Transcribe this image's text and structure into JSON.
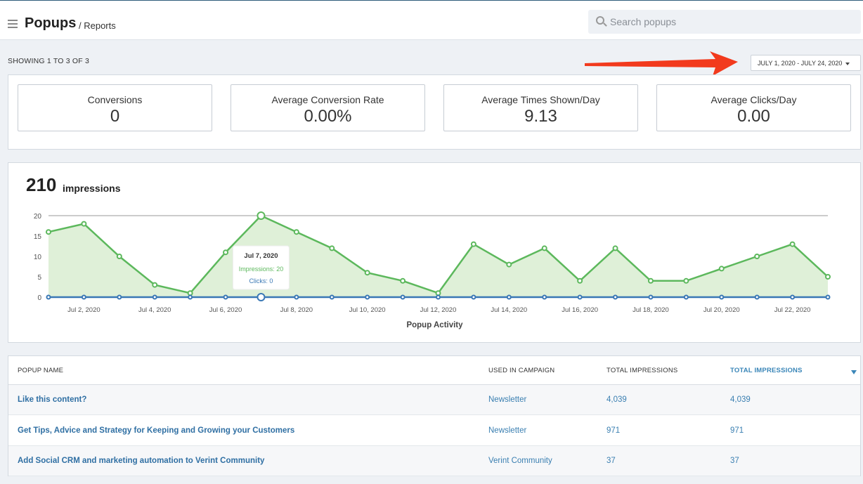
{
  "header": {
    "title": "Popups",
    "breadcrumb": "/ Reports",
    "search_placeholder": "Search popups"
  },
  "toolbar": {
    "showing": "SHOWING 1 TO 3 OF 3",
    "date_range": "JULY 1, 2020 - JULY 24, 2020"
  },
  "stats": [
    {
      "label": "Conversions",
      "value": "0"
    },
    {
      "label": "Average Conversion Rate",
      "value": "0.00%"
    },
    {
      "label": "Average Times Shown/Day",
      "value": "9.13"
    },
    {
      "label": "Average Clicks/Day",
      "value": "0.00"
    }
  ],
  "summary": {
    "count": "210",
    "label": "impressions"
  },
  "chart_data": {
    "type": "area",
    "xlabel": "Popup Activity",
    "ylabel": "",
    "ylim": [
      0,
      20
    ],
    "yticks": [
      0,
      5,
      10,
      15,
      20
    ],
    "x": [
      "Jul 1, 2020",
      "Jul 2, 2020",
      "Jul 3, 2020",
      "Jul 4, 2020",
      "Jul 5, 2020",
      "Jul 6, 2020",
      "Jul 7, 2020",
      "Jul 8, 2020",
      "Jul 9, 2020",
      "Jul 10, 2020",
      "Jul 11, 2020",
      "Jul 12, 2020",
      "Jul 13, 2020",
      "Jul 14, 2020",
      "Jul 15, 2020",
      "Jul 16, 2020",
      "Jul 17, 2020",
      "Jul 18, 2020",
      "Jul 19, 2020",
      "Jul 20, 2020",
      "Jul 21, 2020",
      "Jul 22, 2020",
      "Jul 23, 2020"
    ],
    "xtick_labels": [
      "Jul 2, 2020",
      "Jul 4, 2020",
      "Jul 6, 2020",
      "Jul 8, 2020",
      "Jul 10, 2020",
      "Jul 12, 2020",
      "Jul 14, 2020",
      "Jul 16, 2020",
      "Jul 18, 2020",
      "Jul 20, 2020",
      "Jul 22, 2020"
    ],
    "series": [
      {
        "name": "Impressions",
        "color": "#5cb85c",
        "values": [
          16,
          18,
          10,
          3,
          1,
          11,
          20,
          16,
          12,
          6,
          4,
          1,
          13,
          8,
          12,
          4,
          12,
          4,
          4,
          7,
          10,
          13,
          5
        ]
      },
      {
        "name": "Clicks",
        "color": "#3a78b5",
        "values": [
          0,
          0,
          0,
          0,
          0,
          0,
          0,
          0,
          0,
          0,
          0,
          0,
          0,
          0,
          0,
          0,
          0,
          0,
          0,
          0,
          0,
          0,
          0
        ]
      }
    ],
    "tooltip": {
      "title": "Jul 7, 2020",
      "impressions": "Impressions: 20",
      "clicks": "Clicks: 0"
    },
    "grid": true,
    "legend": "none"
  },
  "table": {
    "headers": [
      "POPUP NAME",
      "USED IN CAMPAIGN",
      "TOTAL IMPRESSIONS",
      "TOTAL IMPRESSIONS"
    ],
    "rows": [
      {
        "name": "Like this content?",
        "campaign": "Newsletter",
        "impressions": "4,039",
        "impressions_sorted": "4,039"
      },
      {
        "name": "Get Tips, Advice and Strategy for Keeping and Growing your Customers",
        "campaign": "Newsletter",
        "impressions": "971",
        "impressions_sorted": "971"
      },
      {
        "name": "Add Social CRM and marketing automation to Verint Community",
        "campaign": "Verint Community",
        "impressions": "37",
        "impressions_sorted": "37"
      }
    ]
  }
}
